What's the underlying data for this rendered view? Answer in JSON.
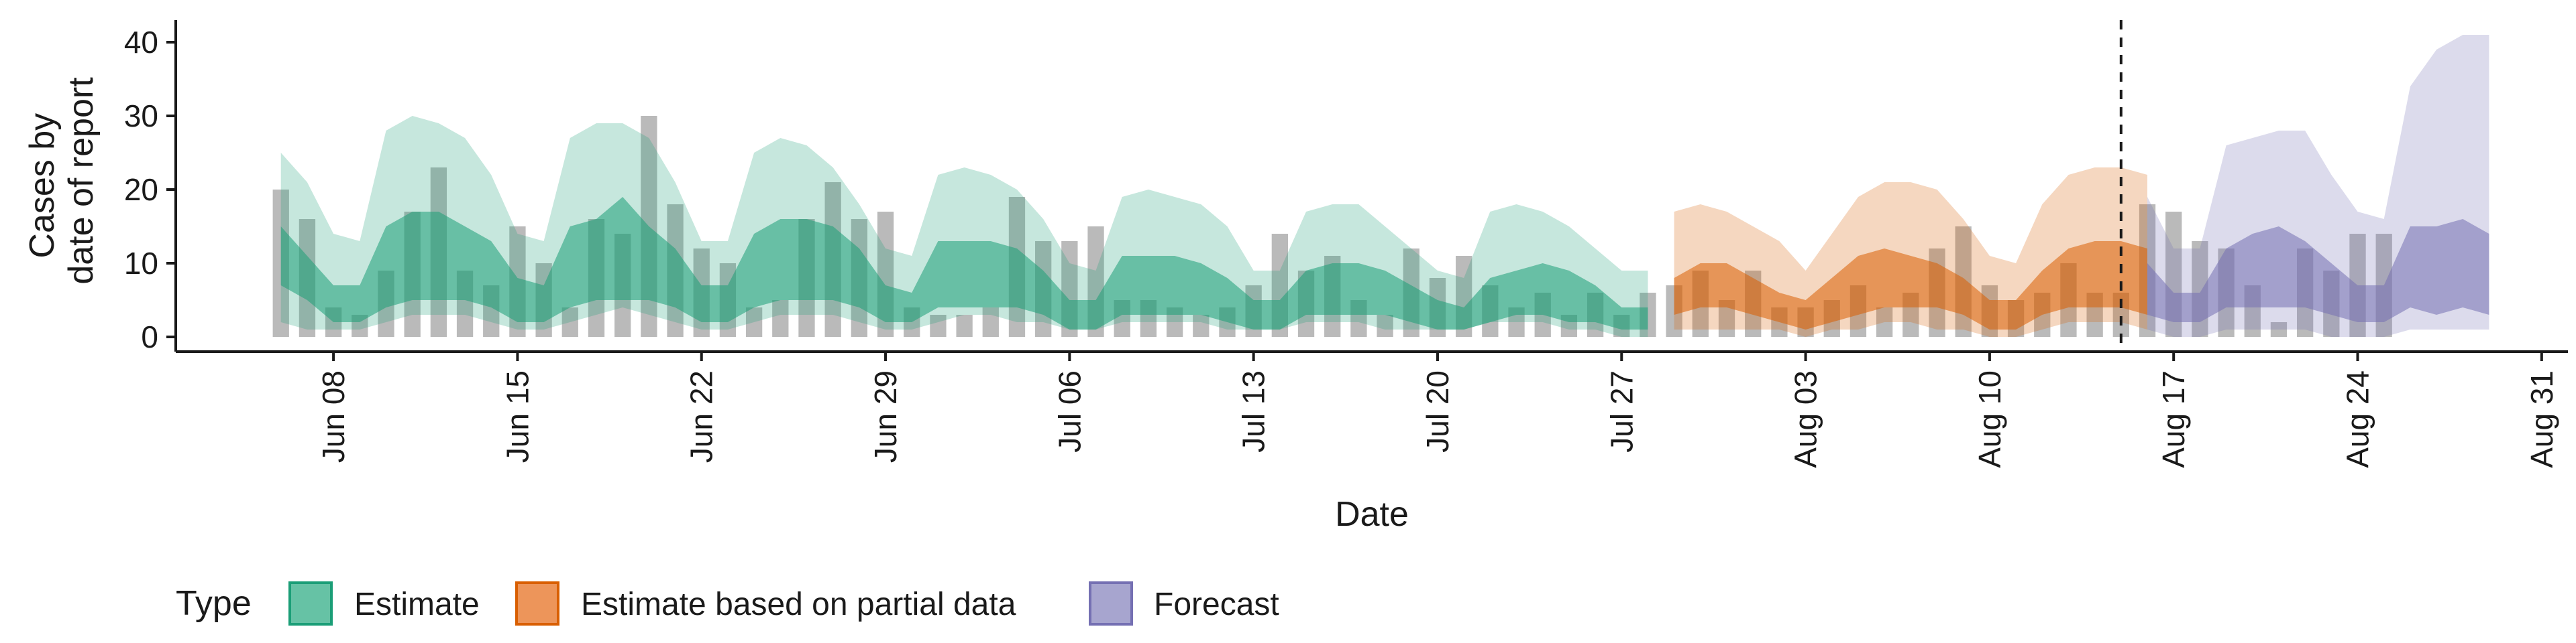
{
  "chart_data": {
    "type": "area",
    "xlabel": "Date",
    "ylabel_lines": [
      "Cases by",
      "date of report"
    ],
    "ylim": [
      -2,
      43
    ],
    "y_ticks": [
      0,
      10,
      20,
      30,
      40
    ],
    "x_range": [
      "2025-06-02",
      "2025-09-01"
    ],
    "x_ticks": [
      {
        "date": "2025-06-08",
        "label": "Jun 08"
      },
      {
        "date": "2025-06-15",
        "label": "Jun 15"
      },
      {
        "date": "2025-06-22",
        "label": "Jun 22"
      },
      {
        "date": "2025-06-29",
        "label": "Jun 29"
      },
      {
        "date": "2025-07-06",
        "label": "Jul 06"
      },
      {
        "date": "2025-07-13",
        "label": "Jul 13"
      },
      {
        "date": "2025-07-20",
        "label": "Jul 20"
      },
      {
        "date": "2025-07-27",
        "label": "Jul 27"
      },
      {
        "date": "2025-08-03",
        "label": "Aug 03"
      },
      {
        "date": "2025-08-10",
        "label": "Aug 10"
      },
      {
        "date": "2025-08-17",
        "label": "Aug 17"
      },
      {
        "date": "2025-08-24",
        "label": "Aug 24"
      },
      {
        "date": "2025-08-31",
        "label": "Aug 31"
      }
    ],
    "vline_date": "2025-08-15",
    "grid": false,
    "legend": {
      "position": "bottom",
      "title": "Type",
      "items": [
        {
          "label": "Estimate",
          "fill": "#66c2a5",
          "stroke": "#1b9e77"
        },
        {
          "label": "Estimate based on partial data",
          "fill": "#ed955a",
          "stroke": "#d95f02"
        },
        {
          "label": "Forecast",
          "fill": "#a7a5cf",
          "stroke": "#7570b3"
        }
      ]
    },
    "observed_cases": {
      "start": "2025-06-06",
      "values": [
        20,
        16,
        4,
        3,
        9,
        17,
        23,
        9,
        7,
        15,
        10,
        4,
        16,
        14,
        30,
        18,
        12,
        10,
        4,
        5,
        16,
        21,
        16,
        17,
        4,
        3,
        3,
        4,
        19,
        13,
        13,
        15,
        5,
        5,
        4,
        3,
        4,
        7,
        14,
        9,
        11,
        5,
        3,
        12,
        8,
        11,
        7,
        4,
        6,
        3,
        6,
        3,
        6,
        7,
        9,
        5,
        9,
        4,
        4,
        5,
        7,
        4,
        6,
        12,
        15,
        7,
        5,
        6,
        10,
        6,
        6,
        18,
        17,
        13,
        12,
        7,
        2,
        12,
        9,
        14,
        14
      ]
    },
    "series": [
      {
        "name": "Estimate",
        "color": "#1b9e77",
        "start": "2025-06-06",
        "outer_upper": [
          25,
          21,
          14,
          13,
          28,
          30,
          29,
          27,
          22,
          14,
          13,
          27,
          29,
          29,
          27,
          21,
          13,
          13,
          25,
          27,
          26,
          23,
          18,
          12,
          11,
          22,
          23,
          22,
          20,
          16,
          10,
          9,
          19,
          20,
          19,
          18,
          15,
          9,
          9,
          17,
          18,
          18,
          15,
          12,
          9,
          8,
          17,
          18,
          17,
          15,
          12,
          9,
          9
        ],
        "outer_lower": [
          2,
          1,
          1,
          1,
          2,
          3,
          3,
          3,
          2,
          1,
          1,
          2,
          3,
          4,
          3,
          2,
          1,
          1,
          2,
          3,
          3,
          3,
          2,
          1,
          1,
          2,
          3,
          3,
          2,
          2,
          1,
          1,
          2,
          2,
          2,
          2,
          1,
          1,
          1,
          2,
          2,
          2,
          1,
          1,
          1,
          1,
          2,
          2,
          2,
          1,
          1,
          0,
          0
        ],
        "inner_upper": [
          15,
          11,
          7,
          7,
          15,
          17,
          17,
          15,
          13,
          8,
          7,
          15,
          16,
          19,
          15,
          12,
          7,
          7,
          14,
          16,
          16,
          15,
          12,
          7,
          6,
          13,
          13,
          13,
          12,
          9,
          5,
          5,
          11,
          11,
          11,
          10,
          8,
          5,
          5,
          9,
          10,
          10,
          9,
          7,
          5,
          4,
          8,
          9,
          10,
          9,
          7,
          4,
          4
        ],
        "inner_lower": [
          7,
          5,
          2,
          2,
          4,
          5,
          5,
          5,
          4,
          2,
          2,
          4,
          5,
          5,
          5,
          4,
          2,
          2,
          4,
          5,
          5,
          5,
          4,
          2,
          2,
          4,
          4,
          4,
          4,
          3,
          1,
          1,
          3,
          3,
          3,
          3,
          2,
          1,
          1,
          3,
          3,
          3,
          3,
          2,
          1,
          1,
          2,
          3,
          3,
          2,
          2,
          1,
          1
        ]
      },
      {
        "name": "Estimate based on partial data",
        "color": "#d95f02",
        "start": "2025-07-29",
        "outer_upper": [
          17,
          18,
          17,
          15,
          13,
          9,
          14,
          19,
          21,
          21,
          20,
          16,
          11,
          10,
          18,
          22,
          23,
          23,
          22
        ],
        "outer_lower": [
          1,
          1,
          1,
          1,
          1,
          0,
          1,
          1,
          2,
          2,
          1,
          1,
          0,
          0,
          1,
          2,
          2,
          2,
          1
        ],
        "inner_upper": [
          8,
          10,
          10,
          8,
          6,
          5,
          8,
          11,
          12,
          11,
          10,
          8,
          5,
          5,
          9,
          12,
          13,
          13,
          12
        ],
        "inner_lower": [
          3,
          4,
          4,
          3,
          2,
          1,
          2,
          3,
          4,
          4,
          4,
          3,
          1,
          1,
          3,
          4,
          4,
          4,
          3
        ]
      },
      {
        "name": "Forecast",
        "color": "#7570b3",
        "start": "2025-08-16",
        "outer_upper": [
          19,
          12,
          12,
          26,
          27,
          28,
          28,
          22,
          17,
          16,
          34,
          39,
          41,
          41
        ],
        "outer_lower": [
          1,
          0,
          0,
          1,
          1,
          1,
          1,
          0,
          0,
          0,
          1,
          1,
          1,
          1
        ],
        "inner_upper": [
          10,
          6,
          6,
          12,
          14,
          15,
          13,
          10,
          7,
          7,
          15,
          15,
          16,
          14
        ],
        "inner_lower": [
          3,
          2,
          2,
          4,
          4,
          4,
          4,
          3,
          2,
          2,
          4,
          3,
          4,
          3
        ]
      }
    ]
  }
}
